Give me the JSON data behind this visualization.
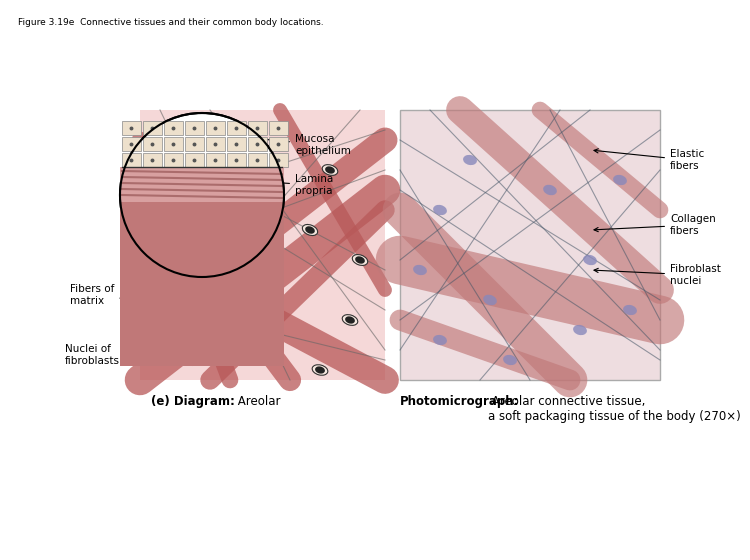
{
  "figure_title": "Figure 3.19e  Connective tissues and their common body locations.",
  "title_fontsize": 6.5,
  "bg_color": "#ffffff",
  "diagram_label_bold": "(e) Diagram:",
  "diagram_label_normal": " Areolar",
  "photo_label_bold": "Photomicrograph:",
  "photo_label_normal": " Areolar connective tissue,\na soft packaging tissue of the body (270×)",
  "caption_fontsize": 8.5,
  "label_fontsize": 7.5,
  "pink_light": "#f0c8c8",
  "pink_medium": "#d89090",
  "pink_dark": "#b85858",
  "pink_bg": "#f5d8d8",
  "photo_bg": "#eedde0",
  "photo_fiber_color": "#c07878",
  "photo_elastic_color": "#445566",
  "photo_nuclei_color": "#8888bb",
  "inset_epithelium_color": "#e8d8c8",
  "inset_lamina_color": "#d8a0a0",
  "inset_deep_color": "#c88080"
}
